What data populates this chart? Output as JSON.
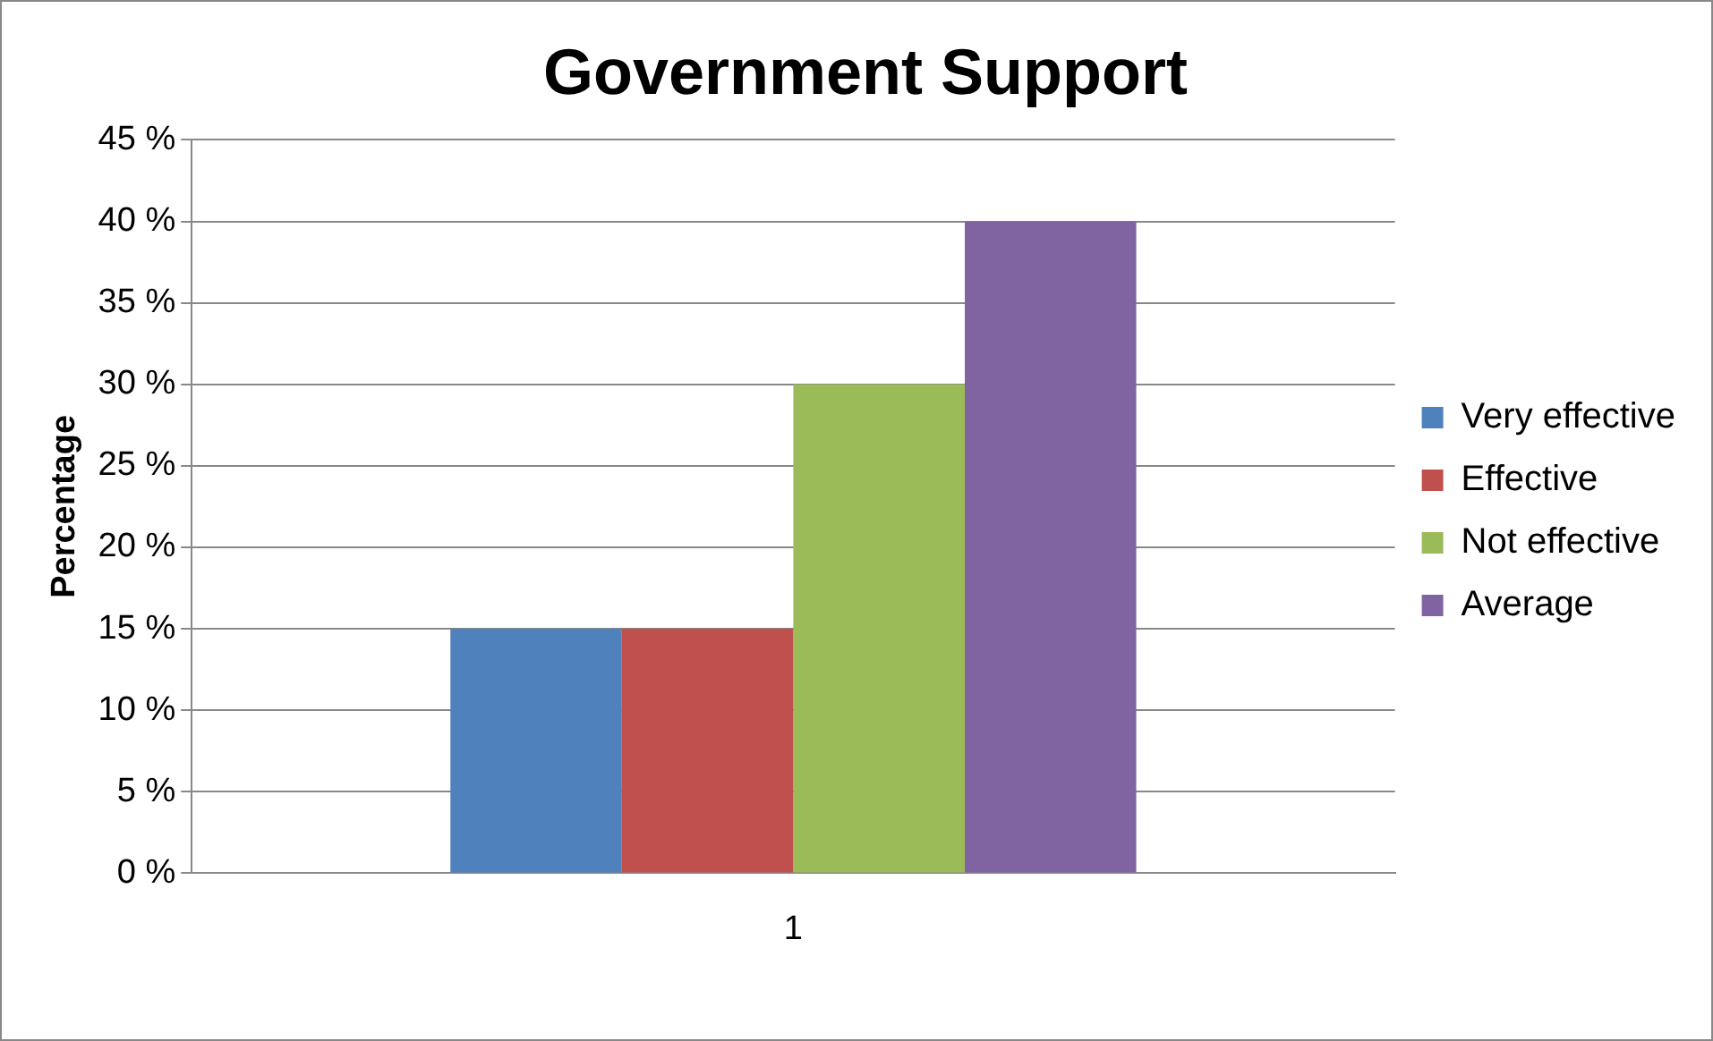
{
  "chart_data": {
    "type": "bar",
    "title": "Government Support",
    "ylabel": "Percentage",
    "categories": [
      "1"
    ],
    "series": [
      {
        "name": "Very effective",
        "color": "#4f81bd",
        "values": [
          15
        ]
      },
      {
        "name": "Effective",
        "color": "#c0504d",
        "values": [
          15
        ]
      },
      {
        "name": "Not effective",
        "color": "#9bbb59",
        "values": [
          30
        ]
      },
      {
        "name": "Average",
        "color": "#8064a2",
        "values": [
          40
        ]
      }
    ],
    "ylim": [
      0,
      45
    ],
    "yticks": [
      {
        "value": 0,
        "label": "0 %"
      },
      {
        "value": 5,
        "label": "5 %"
      },
      {
        "value": 10,
        "label": "10 %"
      },
      {
        "value": 15,
        "label": "15 %"
      },
      {
        "value": 20,
        "label": "20 %"
      },
      {
        "value": 25,
        "label": "25 %"
      },
      {
        "value": 30,
        "label": "30 %"
      },
      {
        "value": 35,
        "label": "35 %"
      },
      {
        "value": 40,
        "label": "40 %"
      },
      {
        "value": 45,
        "label": "45 %"
      }
    ],
    "grid": "y",
    "legend": "right"
  }
}
